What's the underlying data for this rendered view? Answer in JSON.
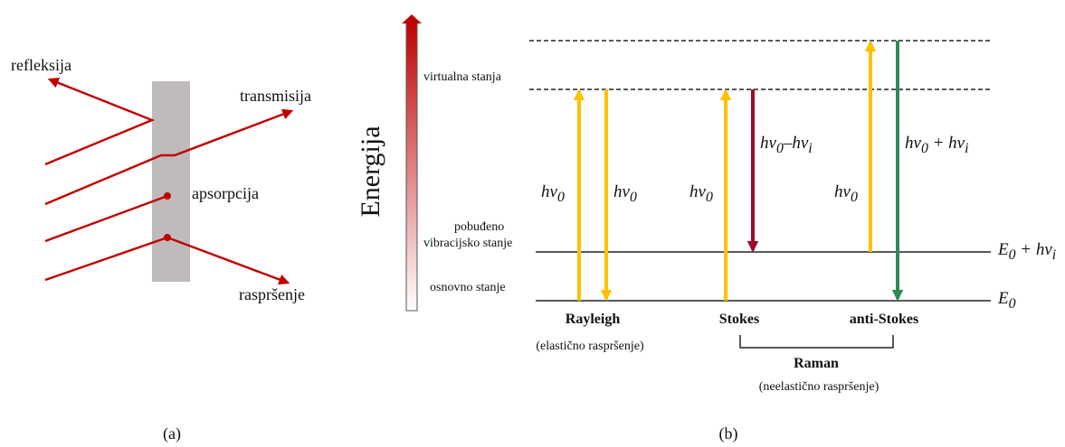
{
  "panel_a": {
    "reflection": "refleksija",
    "transmission": "transmisija",
    "absorption": "apsorpcija",
    "scattering": "raspršenje",
    "caption": "(a)"
  },
  "panel_b": {
    "energy_axis": "Energija",
    "virtual_states": "virtualna stanja",
    "excited_line1": "pobuđeno",
    "excited_line2": "vibracijsko stanje",
    "ground_state": "osnovno stanje",
    "rayleigh": "Rayleigh",
    "rayleigh_sub": "(elastično raspršenje)",
    "stokes": "Stokes",
    "anti_stokes": "anti-Stokes",
    "raman": "Raman",
    "raman_sub": "(neelastično raspršenje)",
    "caption": "(b)",
    "colors": {
      "excitation": "#ffc000",
      "stokes_emission": "#9e0b2b",
      "anti_stokes_emission": "#2e8b57",
      "beam": "#c00000",
      "slab": "#bfbbbb"
    }
  }
}
